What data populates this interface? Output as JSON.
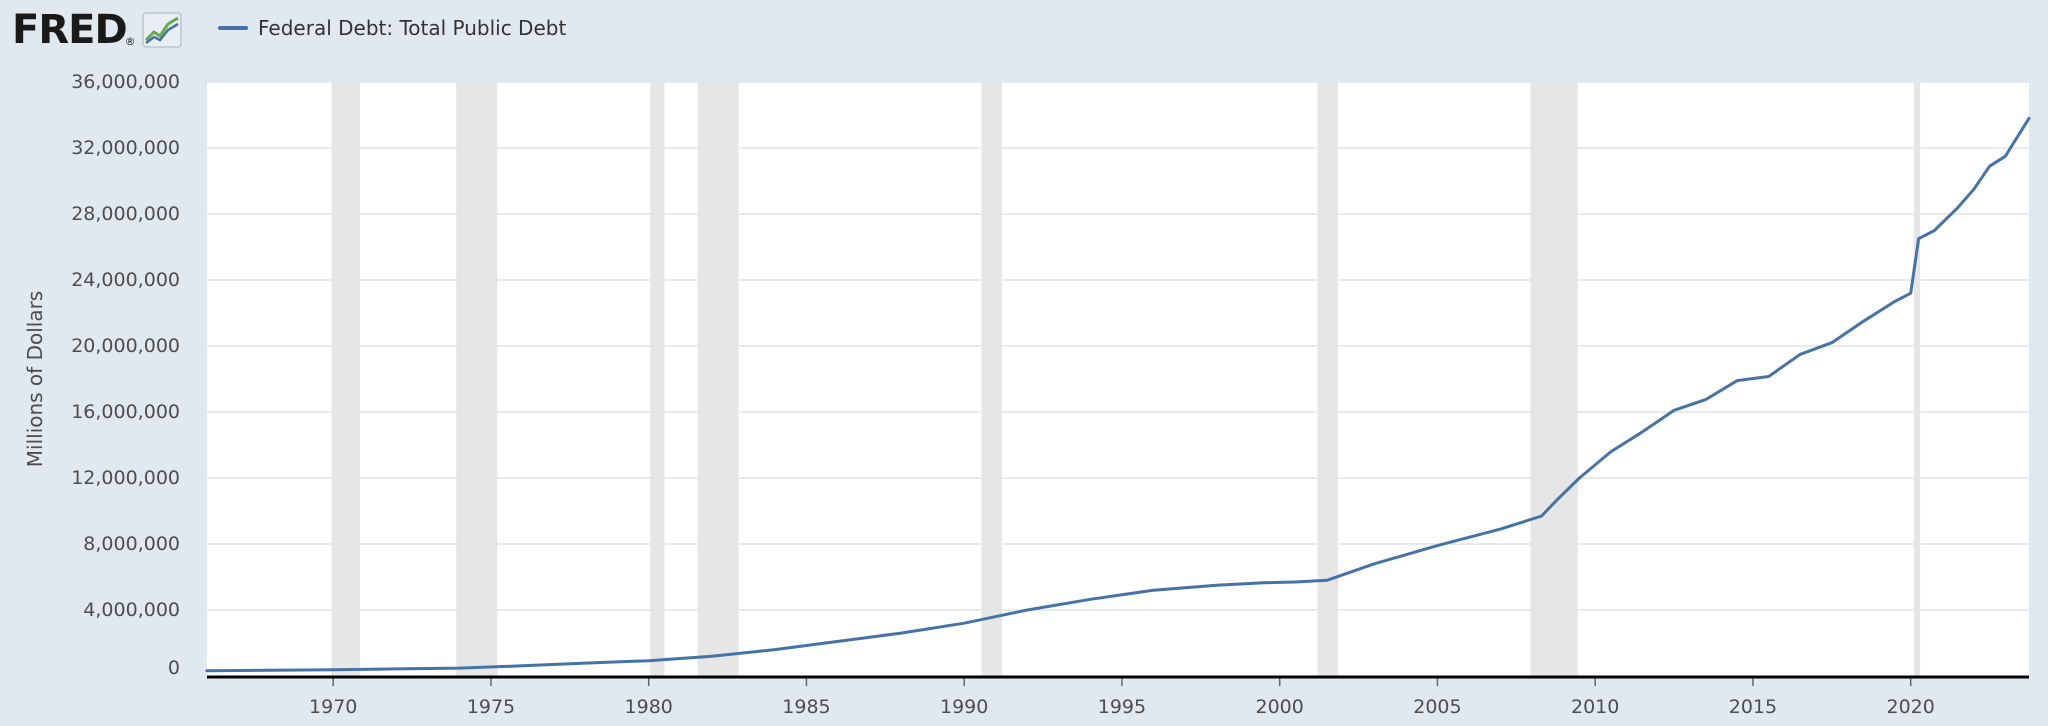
{
  "header": {
    "logo_text": "FRED",
    "logo_mark": "®",
    "logo_icon": "line-chart-icon"
  },
  "legend": {
    "label": "Federal Debt: Total Public Debt",
    "color": "#4572a7"
  },
  "colors": {
    "page_background": "#e1e9f0",
    "plot_background": "#ffffff",
    "line": "#4572a7",
    "recession": "#e6e6e6",
    "grid": "#e1e5ea",
    "axis": "#000000"
  },
  "chart_data": {
    "type": "line",
    "title": "",
    "xlabel": "",
    "ylabel": "Millions of Dollars",
    "grid": true,
    "legend_position": "top-left",
    "xlim": [
      1966,
      2023.75
    ],
    "ylim": [
      0,
      36000000
    ],
    "x_ticks": [
      1970,
      1975,
      1980,
      1985,
      1990,
      1995,
      2000,
      2005,
      2010,
      2015,
      2020
    ],
    "y_ticks": [
      0,
      4000000,
      8000000,
      12000000,
      16000000,
      20000000,
      24000000,
      28000000,
      32000000,
      36000000
    ],
    "y_tick_labels": [
      "0",
      "4,000,000",
      "8,000,000",
      "12,000,000",
      "16,000,000",
      "20,000,000",
      "24,000,000",
      "28,000,000",
      "32,000,000",
      "36,000,000"
    ],
    "recessions": [
      [
        1969.95,
        1970.85
      ],
      [
        1973.9,
        1975.2
      ],
      [
        1980.05,
        1980.5
      ],
      [
        1981.55,
        1982.85
      ],
      [
        1990.55,
        1991.2
      ],
      [
        2001.2,
        2001.85
      ],
      [
        2007.95,
        2009.45
      ],
      [
        2020.1,
        2020.3
      ]
    ],
    "series": [
      {
        "name": "Federal Debt: Total Public Debt",
        "x": [
          1966,
          1968,
          1970,
          1972,
          1974,
          1976,
          1978,
          1980,
          1982,
          1984,
          1986,
          1988,
          1990,
          1992,
          1994,
          1996,
          1998,
          1999.5,
          2000.5,
          2001.5,
          2003,
          2005,
          2007,
          2008.3,
          2008.75,
          2009.5,
          2010.5,
          2011.5,
          2012.5,
          2013.5,
          2014.5,
          2015.5,
          2016.5,
          2017.5,
          2018.5,
          2019.5,
          2020.0,
          2020.25,
          2020.75,
          2021.5,
          2022.0,
          2022.5,
          2023.0,
          2023.75
        ],
        "y": [
          320000,
          350000,
          380000,
          430000,
          480000,
          620000,
          780000,
          930000,
          1200000,
          1600000,
          2100000,
          2600000,
          3200000,
          4000000,
          4650000,
          5200000,
          5500000,
          5650000,
          5700000,
          5800000,
          6800000,
          7900000,
          8900000,
          9700000,
          10600000,
          12000000,
          13600000,
          14800000,
          16100000,
          16750000,
          17900000,
          18150000,
          19500000,
          20200000,
          21500000,
          22700000,
          23200000,
          26500000,
          27000000,
          28400000,
          29500000,
          30900000,
          31500000,
          33800000
        ]
      }
    ]
  }
}
